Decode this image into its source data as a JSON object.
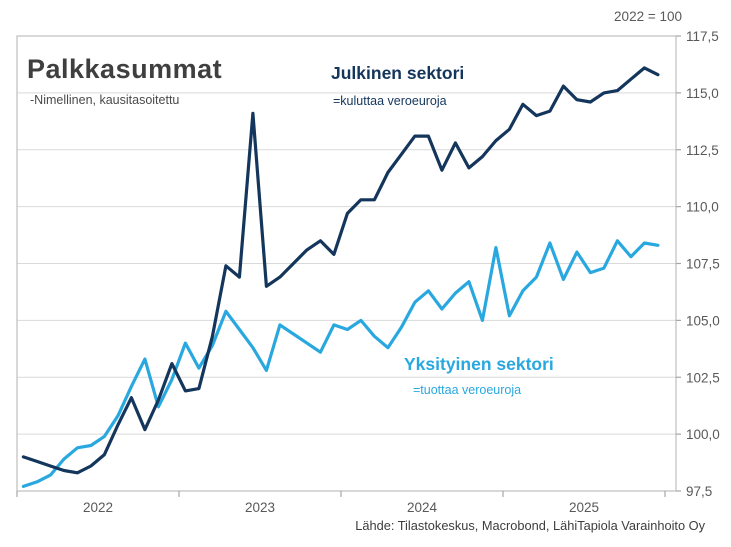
{
  "header": {
    "title": "Palkkasummat",
    "subtitle": "-Nimellinen, kausitasoitettu",
    "index_note": "2022 = 100"
  },
  "legend": {
    "julkinen_name": "Julkinen sektori",
    "julkinen_desc": "=kuluttaa veroeuroja",
    "yksityinen_name": "Yksityinen sektori",
    "yksityinen_desc": "=tuottaa veroeuroja"
  },
  "footer": {
    "source": "Lähde: Tilastokeskus, Macrobond, LähiTapiola Varainhoito Oy"
  },
  "colors": {
    "julkinen": "#14365C",
    "yksityinen": "#29A8E0",
    "grid": "#D9D9D9",
    "frame": "#BFBFBF",
    "tick": "#A6A6A6",
    "axis_text": "#595959"
  },
  "chart_data": {
    "type": "line",
    "title": "Palkkasummat",
    "subtitle": "-Nimellinen, kausitasoitettu",
    "index_note": "2022 = 100",
    "x_unit": "month",
    "x_start": "2022-01",
    "x_end": "2025-12",
    "x_tick_labels": [
      "2022",
      "2023",
      "2024",
      "2025"
    ],
    "y_tick_labels": [
      "117,5",
      "115,0",
      "112,5",
      "110,0",
      "107,5",
      "105,0",
      "102,5",
      "100,0",
      "97,5"
    ],
    "ylim": [
      97.5,
      117.5
    ],
    "y_step": 2.5,
    "grid": "horizontal",
    "legend_position": "inline-annotations",
    "series": [
      {
        "name": "Julkinen sektori",
        "annotation": "=kuluttaa veroeuroja",
        "color": "#14365C",
        "values": [
          99.0,
          98.8,
          98.6,
          98.4,
          98.3,
          98.6,
          99.1,
          100.4,
          101.6,
          100.2,
          101.5,
          103.1,
          101.9,
          102.0,
          104.3,
          107.4,
          106.9,
          114.1,
          106.5,
          106.9,
          107.5,
          108.1,
          108.5,
          107.9,
          109.7,
          110.3,
          110.3,
          111.5,
          112.3,
          113.1,
          113.1,
          111.6,
          112.8,
          111.7,
          112.2,
          112.9,
          113.4,
          114.5,
          114.0,
          114.2,
          115.3,
          114.7,
          114.6,
          115.0,
          115.1,
          115.6,
          116.1,
          115.8
        ]
      },
      {
        "name": "Yksityinen sektori",
        "annotation": "=tuottaa veroeuroja",
        "color": "#29A8E0",
        "values": [
          97.7,
          97.9,
          98.2,
          98.9,
          99.4,
          99.5,
          99.9,
          100.8,
          102.1,
          103.3,
          101.2,
          102.4,
          104.0,
          102.9,
          103.9,
          105.4,
          104.6,
          103.8,
          102.8,
          104.8,
          104.4,
          104.0,
          103.6,
          104.8,
          104.6,
          105.0,
          104.3,
          103.8,
          104.7,
          105.8,
          106.3,
          105.5,
          106.2,
          106.7,
          105.0,
          108.2,
          105.2,
          106.3,
          106.9,
          108.4,
          106.8,
          108.0,
          107.1,
          107.3,
          108.5,
          107.8,
          108.4,
          108.3
        ]
      }
    ]
  }
}
